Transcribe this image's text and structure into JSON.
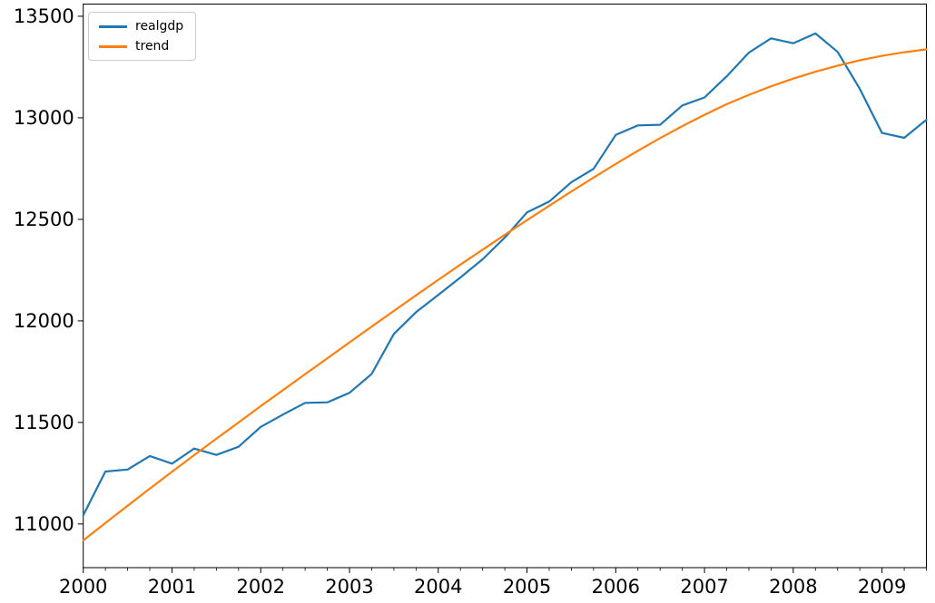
{
  "chart_data": {
    "type": "line",
    "title": "",
    "xlabel": "",
    "ylabel": "",
    "grid": false,
    "legend_position": "upper-left",
    "axis_color": "#000000",
    "tick_label_color": "#000000",
    "ylim": [
      10785,
      13560
    ],
    "y_ticks": [
      11000,
      11500,
      12000,
      12500,
      13000,
      13500
    ],
    "x_tick_labels": [
      "2000",
      "2001",
      "2002",
      "2003",
      "2004",
      "2005",
      "2006",
      "2007",
      "2008",
      "2009"
    ],
    "x_major_every": 4,
    "x": [
      "2000Q1",
      "2000Q2",
      "2000Q3",
      "2000Q4",
      "2001Q1",
      "2001Q2",
      "2001Q3",
      "2001Q4",
      "2002Q1",
      "2002Q2",
      "2002Q3",
      "2002Q4",
      "2003Q1",
      "2003Q2",
      "2003Q3",
      "2003Q4",
      "2004Q1",
      "2004Q2",
      "2004Q3",
      "2004Q4",
      "2005Q1",
      "2005Q2",
      "2005Q3",
      "2005Q4",
      "2006Q1",
      "2006Q2",
      "2006Q3",
      "2006Q4",
      "2007Q1",
      "2007Q2",
      "2007Q3",
      "2007Q4",
      "2008Q1",
      "2008Q2",
      "2008Q3",
      "2008Q4",
      "2009Q1",
      "2009Q2",
      "2009Q3"
    ],
    "series": [
      {
        "name": "realgdp",
        "color": "#1f77b4",
        "values": [
          11043.0,
          11258.5,
          11267.9,
          11334.5,
          11297.2,
          11371.3,
          11340.1,
          11380.1,
          11477.9,
          11538.8,
          11596.4,
          11598.8,
          11645.8,
          11738.7,
          11935.5,
          12042.8,
          12127.6,
          12213.8,
          12303.5,
          12410.3,
          12534.1,
          12587.5,
          12683.2,
          12748.7,
          12915.9,
          12962.5,
          12965.9,
          13060.7,
          13099.9,
          13204.0,
          13321.1,
          13391.2,
          13366.9,
          13415.3,
          13324.6,
          13141.9,
          12925.4,
          12901.5,
          12990.3
        ]
      },
      {
        "name": "trend",
        "color": "#ff7f0e",
        "values": [
          10919,
          11005,
          11090,
          11174,
          11257,
          11339,
          11420,
          11500,
          11580,
          11659,
          11738,
          11816,
          11894,
          11972,
          12049,
          12126,
          12202,
          12277,
          12351,
          12424,
          12496,
          12567,
          12637,
          12706,
          12773,
          12838,
          12900,
          12959,
          13015,
          13067,
          13113,
          13155,
          13193,
          13227,
          13257,
          13283,
          13305,
          13323,
          13337
        ]
      }
    ]
  }
}
